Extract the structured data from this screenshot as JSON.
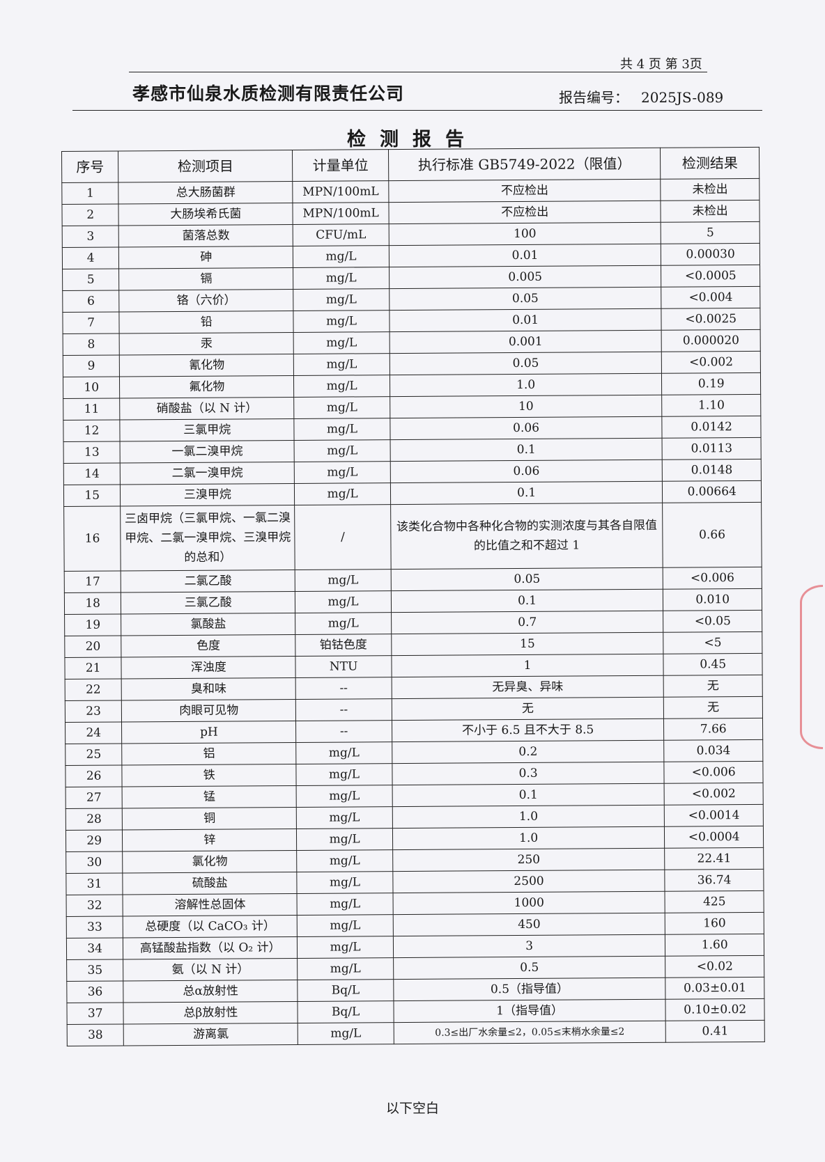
{
  "header": {
    "page_indicator": "共 4 页  第 3页",
    "company": "孝感市仙泉水质检测有限责任公司",
    "report_no_label": "报告编号：",
    "report_no": "2025JS-089",
    "title": "检测报告"
  },
  "table": {
    "columns": [
      "序号",
      "检测项目",
      "计量单位",
      "执行标准 GB5749-2022（限值）",
      "检测结果"
    ],
    "rows": [
      {
        "no": "1",
        "item": "总大肠菌群",
        "unit": "MPN/100mL",
        "limit": "不应检出",
        "result": "未检出"
      },
      {
        "no": "2",
        "item": "大肠埃希氏菌",
        "unit": "MPN/100mL",
        "limit": "不应检出",
        "result": "未检出"
      },
      {
        "no": "3",
        "item": "菌落总数",
        "unit": "CFU/mL",
        "limit": "100",
        "result": "5"
      },
      {
        "no": "4",
        "item": "砷",
        "unit": "mg/L",
        "limit": "0.01",
        "result": "0.00030"
      },
      {
        "no": "5",
        "item": "镉",
        "unit": "mg/L",
        "limit": "0.005",
        "result": "<0.0005"
      },
      {
        "no": "6",
        "item": "铬（六价）",
        "unit": "mg/L",
        "limit": "0.05",
        "result": "<0.004"
      },
      {
        "no": "7",
        "item": "铅",
        "unit": "mg/L",
        "limit": "0.01",
        "result": "<0.0025"
      },
      {
        "no": "8",
        "item": "汞",
        "unit": "mg/L",
        "limit": "0.001",
        "result": "0.000020"
      },
      {
        "no": "9",
        "item": "氰化物",
        "unit": "mg/L",
        "limit": "0.05",
        "result": "<0.002"
      },
      {
        "no": "10",
        "item": "氟化物",
        "unit": "mg/L",
        "limit": "1.0",
        "result": "0.19"
      },
      {
        "no": "11",
        "item": "硝酸盐（以 N 计）",
        "unit": "mg/L",
        "limit": "10",
        "result": "1.10"
      },
      {
        "no": "12",
        "item": "三氯甲烷",
        "unit": "mg/L",
        "limit": "0.06",
        "result": "0.0142"
      },
      {
        "no": "13",
        "item": "一氯二溴甲烷",
        "unit": "mg/L",
        "limit": "0.1",
        "result": "0.0113"
      },
      {
        "no": "14",
        "item": "二氯一溴甲烷",
        "unit": "mg/L",
        "limit": "0.06",
        "result": "0.0148"
      },
      {
        "no": "15",
        "item": "三溴甲烷",
        "unit": "mg/L",
        "limit": "0.1",
        "result": "0.00664"
      },
      {
        "no": "16",
        "item": "三卤甲烷（三氯甲烷、一氯二溴甲烷、二氯一溴甲烷、三溴甲烷的总和）",
        "unit": "/",
        "limit": "该类化合物中各种化合物的实测浓度与其各自限值的比值之和不超过 1",
        "result": "0.66"
      },
      {
        "no": "17",
        "item": "二氯乙酸",
        "unit": "mg/L",
        "limit": "0.05",
        "result": "<0.006"
      },
      {
        "no": "18",
        "item": "三氯乙酸",
        "unit": "mg/L",
        "limit": "0.1",
        "result": "0.010"
      },
      {
        "no": "19",
        "item": "氯酸盐",
        "unit": "mg/L",
        "limit": "0.7",
        "result": "<0.05"
      },
      {
        "no": "20",
        "item": "色度",
        "unit": "铂钴色度",
        "limit": "15",
        "result": "<5"
      },
      {
        "no": "21",
        "item": "浑浊度",
        "unit": "NTU",
        "limit": "1",
        "result": "0.45"
      },
      {
        "no": "22",
        "item": "臭和味",
        "unit": "--",
        "limit": "无异臭、异味",
        "result": "无"
      },
      {
        "no": "23",
        "item": "肉眼可见物",
        "unit": "--",
        "limit": "无",
        "result": "无"
      },
      {
        "no": "24",
        "item": "pH",
        "unit": "--",
        "limit": "不小于 6.5 且不大于 8.5",
        "result": "7.66"
      },
      {
        "no": "25",
        "item": "铝",
        "unit": "mg/L",
        "limit": "0.2",
        "result": "0.034"
      },
      {
        "no": "26",
        "item": "铁",
        "unit": "mg/L",
        "limit": "0.3",
        "result": "<0.006"
      },
      {
        "no": "27",
        "item": "锰",
        "unit": "mg/L",
        "limit": "0.1",
        "result": "<0.002"
      },
      {
        "no": "28",
        "item": "铜",
        "unit": "mg/L",
        "limit": "1.0",
        "result": "<0.0014"
      },
      {
        "no": "29",
        "item": "锌",
        "unit": "mg/L",
        "limit": "1.0",
        "result": "<0.0004"
      },
      {
        "no": "30",
        "item": "氯化物",
        "unit": "mg/L",
        "limit": "250",
        "result": "22.41"
      },
      {
        "no": "31",
        "item": "硫酸盐",
        "unit": "mg/L",
        "limit": "2500",
        "result": "36.74"
      },
      {
        "no": "32",
        "item": "溶解性总固体",
        "unit": "mg/L",
        "limit": "1000",
        "result": "425"
      },
      {
        "no": "33",
        "item": "总硬度（以 CaCO₃ 计）",
        "unit": "mg/L",
        "limit": "450",
        "result": "160"
      },
      {
        "no": "34",
        "item": "高锰酸盐指数（以 O₂ 计）",
        "unit": "mg/L",
        "limit": "3",
        "result": "1.60"
      },
      {
        "no": "35",
        "item": "氨（以 N 计）",
        "unit": "mg/L",
        "limit": "0.5",
        "result": "<0.02"
      },
      {
        "no": "36",
        "item": "总α放射性",
        "unit": "Bq/L",
        "limit": "0.5（指导值）",
        "result": "0.03±0.01"
      },
      {
        "no": "37",
        "item": "总β放射性",
        "unit": "Bq/L",
        "limit": "1（指导值）",
        "result": "0.10±0.02"
      },
      {
        "no": "38",
        "item": "游离氯",
        "unit": "mg/L",
        "limit": "0.3≤出厂水余量≤2，0.05≤末梢水余量≤2",
        "result": "0.41"
      }
    ]
  },
  "footer": {
    "note": "以下空白"
  },
  "colors": {
    "stamp": "#dc3c46"
  }
}
